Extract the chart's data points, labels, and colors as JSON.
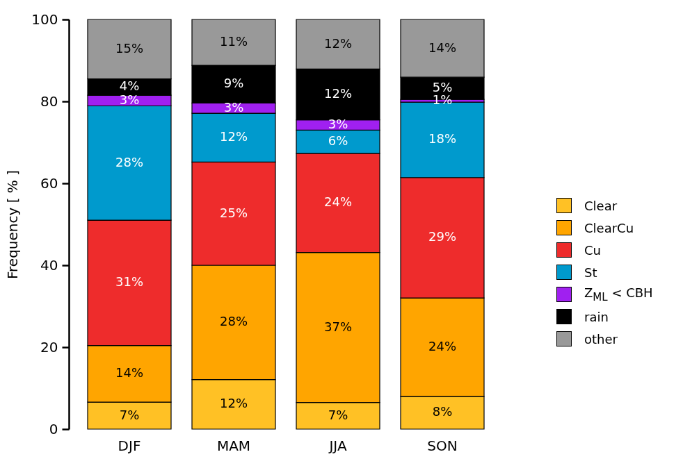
{
  "chart_data": {
    "type": "bar",
    "stacked": true,
    "ylabel": "Frequency [ % ]",
    "categories": [
      "DJF",
      "MAM",
      "JJA",
      "SON"
    ],
    "ylim": [
      0,
      100
    ],
    "yticks": [
      0,
      20,
      40,
      60,
      80,
      100
    ],
    "grid": false,
    "legend": "right",
    "series": [
      {
        "name": "Clear",
        "color": "#ffc125",
        "values": [
          6.6,
          12.1,
          6.5,
          8.0
        ],
        "value_labels": [
          "7%",
          "12%",
          "7%",
          "8%"
        ]
      },
      {
        "name": "ClearCu",
        "color": "#ffa500",
        "values": [
          13.8,
          27.9,
          36.6,
          24.0
        ],
        "value_labels": [
          "14%",
          "28%",
          "37%",
          "24%"
        ]
      },
      {
        "name": "Cu",
        "color": "#ee2c2c",
        "values": [
          30.6,
          25.2,
          24.2,
          29.4
        ],
        "value_labels": [
          "31%",
          "25%",
          "24%",
          "29%"
        ]
      },
      {
        "name": "St",
        "color": "#009acd",
        "values": [
          27.9,
          11.9,
          5.7,
          18.4
        ],
        "value_labels": [
          "28%",
          "12%",
          "6%",
          "18%"
        ]
      },
      {
        "name": "Z$_{ML}$ < CBH",
        "color": "#a020f0",
        "values": [
          2.6,
          2.5,
          2.5,
          0.7
        ],
        "value_labels": [
          "3%",
          "3%",
          "3%",
          "1%"
        ]
      },
      {
        "name": "rain",
        "color": "#000000",
        "values": [
          4.0,
          9.2,
          12.4,
          5.4
        ],
        "value_labels": [
          "4%",
          "9%",
          "12%",
          "5%"
        ]
      },
      {
        "name": "other",
        "color": "#999999",
        "values": [
          14.5,
          11.2,
          12.1,
          14.1
        ],
        "value_labels": [
          "15%",
          "11%",
          "12%",
          "14%"
        ]
      }
    ]
  }
}
